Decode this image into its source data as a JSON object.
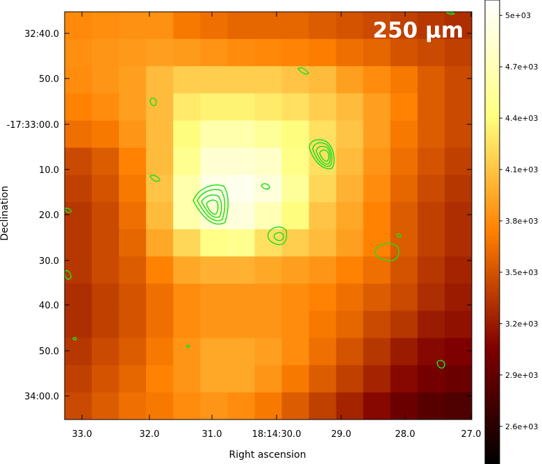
{
  "chart_data": {
    "type": "heatmap",
    "annotation": "250 µm",
    "xlabel": "Right ascension",
    "ylabel": "Declination",
    "xticks": [
      "33.0",
      "32.0",
      "31.0",
      "18:14:30.0",
      "29.0",
      "28.0",
      "27.0"
    ],
    "yticks": [
      "32:40.0",
      "50.0",
      "-17:33:00.0",
      "10.0",
      "20.0",
      "30.0",
      "40.0",
      "50.0",
      "34:00.0"
    ],
    "colorbar": {
      "ticks": [
        "5e+03",
        "4.7e+03",
        "4.4e+03",
        "4.1e+03",
        "3.8e+03",
        "3.5e+03",
        "3.2e+03",
        "2.9e+03",
        "2.6e+03"
      ],
      "tick_values": [
        5000,
        4700,
        4400,
        4100,
        3800,
        3500,
        3200,
        2900,
        2600
      ],
      "vmin": 2380,
      "vmax": 5090,
      "colormap": "afmhot"
    },
    "grid": false,
    "contour_color": "#22dd22",
    "pixel_grid": [
      [
        3790,
        3810,
        3830,
        3830,
        3700,
        3650,
        3600,
        3600,
        3600,
        3550,
        3500,
        3450,
        3400,
        3350,
        3300
      ],
      [
        3820,
        3850,
        3870,
        3900,
        3880,
        3840,
        3800,
        3780,
        3760,
        3720,
        3650,
        3600,
        3500,
        3450,
        3400
      ],
      [
        3800,
        3850,
        3900,
        4050,
        4150,
        4150,
        4150,
        4150,
        4100,
        4050,
        3900,
        3800,
        3700,
        3550,
        3450
      ],
      [
        3750,
        3800,
        3900,
        4050,
        4300,
        4350,
        4350,
        4300,
        4250,
        4150,
        4050,
        3900,
        3750,
        3550,
        3450
      ],
      [
        3650,
        3700,
        3850,
        4050,
        4400,
        4650,
        4650,
        4550,
        4400,
        4250,
        4100,
        3900,
        3700,
        3550,
        3450
      ],
      [
        3450,
        3550,
        3750,
        4050,
        4500,
        4850,
        4850,
        4800,
        4450,
        4250,
        4050,
        3850,
        3650,
        3500,
        3400
      ],
      [
        3400,
        3500,
        3700,
        4100,
        4650,
        4950,
        5000,
        4900,
        4550,
        4200,
        4000,
        3800,
        3600,
        3450,
        3350
      ],
      [
        3350,
        3450,
        3650,
        4050,
        4650,
        4850,
        4900,
        4700,
        4400,
        4100,
        3950,
        3750,
        3550,
        3400,
        3300
      ],
      [
        3350,
        3450,
        3600,
        3950,
        4200,
        4450,
        4500,
        4250,
        4150,
        4050,
        3900,
        3750,
        3550,
        3400,
        3300
      ],
      [
        3350,
        3450,
        3550,
        3750,
        3950,
        4000,
        4000,
        3950,
        3900,
        3850,
        3750,
        3650,
        3500,
        3350,
        3250
      ],
      [
        3300,
        3400,
        3500,
        3650,
        3800,
        3850,
        3850,
        3850,
        3800,
        3750,
        3650,
        3550,
        3450,
        3300,
        3200
      ],
      [
        3300,
        3400,
        3500,
        3650,
        3800,
        3850,
        3850,
        3850,
        3800,
        3700,
        3600,
        3450,
        3350,
        3200,
        3150
      ],
      [
        3350,
        3450,
        3550,
        3700,
        3850,
        3950,
        3950,
        3900,
        3800,
        3650,
        3500,
        3350,
        3200,
        3100,
        3050
      ],
      [
        3400,
        3500,
        3600,
        3750,
        3850,
        3950,
        3950,
        3850,
        3700,
        3550,
        3400,
        3250,
        3100,
        3000,
        2950
      ],
      [
        3450,
        3550,
        3650,
        3700,
        3800,
        3850,
        3800,
        3700,
        3550,
        3400,
        3250,
        3100,
        2950,
        2850,
        2800
      ]
    ]
  }
}
